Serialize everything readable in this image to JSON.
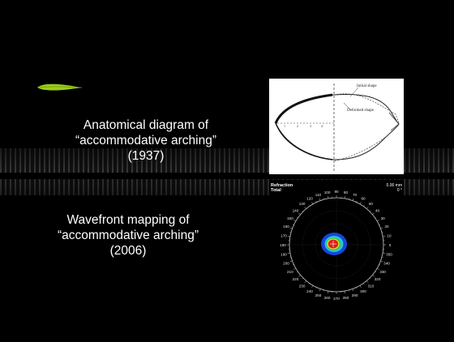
{
  "captions": {
    "top": {
      "line1": "Anatomical diagram of",
      "line2": "“accommodative arching”",
      "line3": "(1937)"
    },
    "bottom": {
      "line1": "Wavefront mapping of",
      "line2": "“accommodative arching”",
      "line3": "(2006)"
    }
  },
  "diagram": {
    "initial_label": "Initial shape",
    "deformed_label": "Deformed shape",
    "axis_marks": [
      "1",
      "2",
      "3",
      "4"
    ]
  },
  "wavefront": {
    "title_line1": "Refraction",
    "title_line2": "Total",
    "scale_line1": "0.00 mm",
    "scale_line2": "0 °",
    "angle_labels": [
      "0",
      "10",
      "20",
      "30",
      "40",
      "50",
      "60",
      "70",
      "80",
      "90",
      "100",
      "110",
      "120",
      "130",
      "140",
      "150",
      "160",
      "170",
      "180",
      "190",
      "200",
      "210",
      "220",
      "230",
      "240",
      "250",
      "260",
      "270",
      "280",
      "290",
      "300",
      "310",
      "320",
      "330",
      "340",
      "350"
    ]
  },
  "colors": {
    "background": "#000000",
    "leaf": "#9acd1a",
    "map_blue": "#1646d8",
    "map_cyan": "#27c6d8",
    "map_red": "#e01c1c",
    "map_yellow": "#e8e024"
  }
}
